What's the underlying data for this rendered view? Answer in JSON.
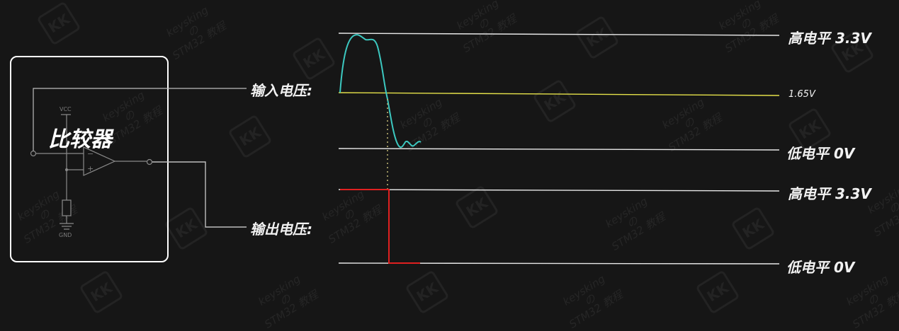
{
  "comparator": {
    "title": "比较器",
    "vcc_label": "VCC",
    "gnd_label": "GND",
    "minus_sign": "−",
    "plus_sign": "+"
  },
  "labels": {
    "input_voltage": "输入电压:",
    "output_voltage": "输出电压:",
    "input_high": "高电平 3.3V",
    "input_threshold": "1.65V",
    "input_low": "低电平  0V",
    "output_high": "高电平 3.3V",
    "output_low": "低电平  0V"
  },
  "watermark": {
    "logo": "KK",
    "text_line1": "keysking",
    "text_line2": "の",
    "text_line3": "STM32 教程"
  },
  "colors": {
    "background": "#161616",
    "line": "#e8e8e8",
    "input_wave": "#3cc8c0",
    "threshold": "#e6e24a",
    "output_wave": "#e02020",
    "crossing_marker": "#b8b070"
  }
}
